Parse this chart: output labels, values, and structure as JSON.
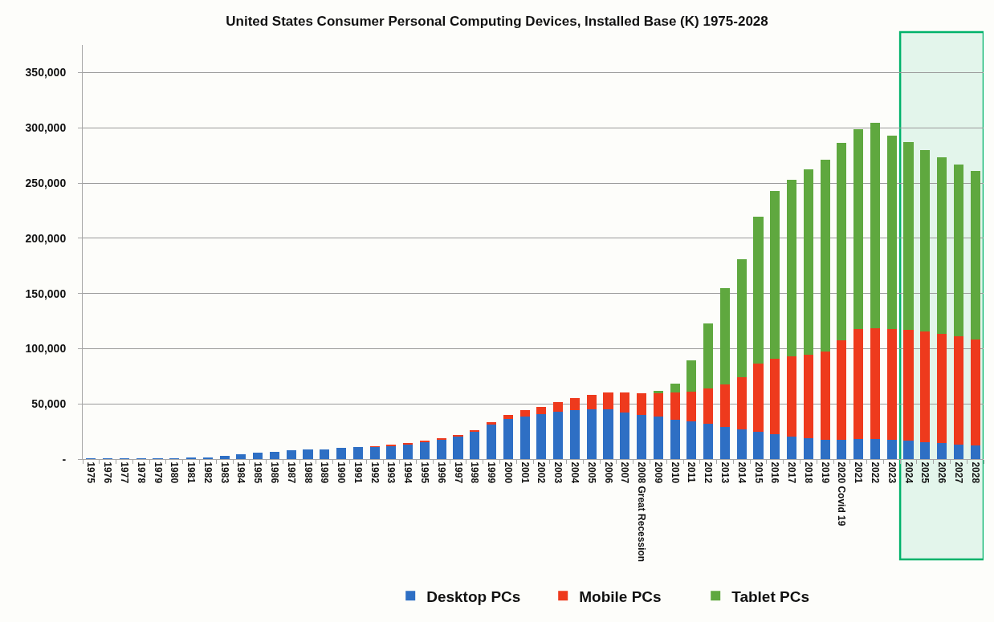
{
  "chart_data": {
    "type": "bar",
    "title": "United States Consumer Personal Computing Devices, Installed Base (K) 1975-2028",
    "stacked": true,
    "categories": [
      "1975",
      "1976",
      "1977",
      "1978",
      "1979",
      "1980",
      "1981",
      "1982",
      "1983",
      "1984",
      "1985",
      "1986",
      "1987",
      "1988",
      "1989",
      "1990",
      "1991",
      "1992",
      "1993",
      "1994",
      "1995",
      "1996",
      "1997",
      "1998",
      "1999",
      "2000",
      "2001",
      "2002",
      "2003",
      "2004",
      "2005",
      "2006",
      "2007",
      "2008 Great Recession",
      "2009",
      "2010",
      "2011",
      "2012",
      "2013",
      "2014",
      "2015",
      "2016",
      "2017",
      "2018",
      "2019",
      "2020 Covid 19",
      "2021",
      "2022",
      "2023",
      "2024",
      "2025",
      "2026",
      "2027",
      "2028"
    ],
    "series": [
      {
        "name": "Desktop PCs",
        "color": "#2e6fc4",
        "values": [
          400,
          400,
          500,
          500,
          600,
          700,
          900,
          1800,
          2800,
          4300,
          5600,
          6400,
          7900,
          8600,
          9000,
          10400,
          11100,
          10900,
          12300,
          13500,
          15900,
          17900,
          20800,
          25100,
          31400,
          36700,
          38600,
          40800,
          42700,
          44200,
          44900,
          44700,
          42500,
          39800,
          38300,
          35900,
          34100,
          31800,
          28900,
          26900,
          24800,
          22700,
          20400,
          19100,
          17800,
          17800,
          18300,
          18300,
          17500,
          16800,
          15500,
          14700,
          13400,
          12100
        ]
      },
      {
        "name": "Mobile PCs",
        "color": "#ee3a1d",
        "values": [
          null,
          null,
          null,
          null,
          null,
          null,
          null,
          null,
          null,
          null,
          null,
          null,
          null,
          null,
          null,
          null,
          null,
          700,
          1000,
          1000,
          800,
          700,
          900,
          1000,
          1700,
          3600,
          5800,
          6500,
          8700,
          10900,
          13300,
          15700,
          17900,
          19900,
          22000,
          24100,
          27200,
          32300,
          38800,
          47100,
          61900,
          68400,
          72800,
          75600,
          79800,
          89800,
          99200,
          100500,
          100000,
          99900,
          99900,
          98700,
          97900,
          96300
        ]
      },
      {
        "name": "Tablet PCs",
        "color": "#5fa83f",
        "values": [
          null,
          null,
          null,
          null,
          null,
          null,
          null,
          null,
          null,
          null,
          null,
          null,
          null,
          null,
          null,
          null,
          null,
          null,
          null,
          null,
          null,
          null,
          null,
          null,
          null,
          null,
          null,
          null,
          null,
          null,
          null,
          null,
          null,
          null,
          1300,
          8000,
          28000,
          58900,
          87300,
          106800,
          132900,
          151300,
          159800,
          167600,
          173500,
          178500,
          181100,
          185700,
          175600,
          170700,
          164700,
          160200,
          155300,
          152500
        ]
      }
    ],
    "ylim": [
      0,
      375000
    ],
    "yticks": [
      {
        "value": 0,
        "label": "-"
      },
      {
        "value": 50000,
        "label": "50,000"
      },
      {
        "value": 100000,
        "label": "100,000"
      },
      {
        "value": 150000,
        "label": "150,000"
      },
      {
        "value": 200000,
        "label": "200,000"
      },
      {
        "value": 250000,
        "label": "250,000"
      },
      {
        "value": 300000,
        "label": "300,000"
      },
      {
        "value": 350000,
        "label": "350,000"
      }
    ],
    "bands": [
      {
        "axis": "x",
        "from": "2024",
        "to": "2028",
        "color": "#00b26a"
      }
    ],
    "grid": "y",
    "legend": "bottom"
  }
}
